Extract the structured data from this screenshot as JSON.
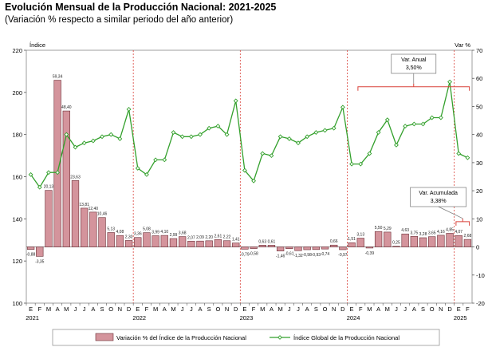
{
  "header": {
    "title": "Evolución Mensual de la Producción Nacional: 2021-2025",
    "subtitle": "(Variación % respecto a similar periodo del año anterior)"
  },
  "chart_data": {
    "type": "bar+line",
    "y_left": {
      "label": "Índice",
      "min": 100,
      "max": 220,
      "step": 20
    },
    "y_right": {
      "label": "Var %",
      "min": -20,
      "max": 70,
      "step": 10
    },
    "month_letters": [
      "E",
      "F",
      "M",
      "A",
      "M",
      "J",
      "J",
      "A",
      "S",
      "O",
      "N",
      "D",
      "E",
      "F",
      "M",
      "A",
      "M",
      "J",
      "J",
      "A",
      "S",
      "O",
      "N",
      "D",
      "E",
      "F",
      "M",
      "A",
      "M",
      "J",
      "J",
      "A",
      "S",
      "O",
      "N",
      "D",
      "E",
      "F",
      "M",
      "A",
      "M",
      "J",
      "J",
      "A",
      "S",
      "O",
      "N",
      "D",
      "E",
      "F"
    ],
    "year_labels": [
      {
        "index": 0,
        "label": "2021"
      },
      {
        "index": 12,
        "label": "2022"
      },
      {
        "index": 24,
        "label": "2023"
      },
      {
        "index": 36,
        "label": "2024"
      },
      {
        "index": 48,
        "label": "2025"
      }
    ],
    "year_separators": [
      12,
      24,
      36,
      48
    ],
    "bar_series": {
      "name": "Variación % del Índice de la Producción Nacional",
      "color": "#d4949c",
      "values": [
        -0.88,
        -3.35,
        20.13,
        59.34,
        48.4,
        23.63,
        13.81,
        12.4,
        10.46,
        5.13,
        4.08,
        2.3,
        3.36,
        5.08,
        3.99,
        4.1,
        2.99,
        3.68,
        2.07,
        2.09,
        2.2,
        2.61,
        2.22,
        1.41,
        -0.79,
        -0.58,
        0.63,
        0.61,
        -1.46,
        -0.61,
        -1.32,
        -0.98,
        -0.93,
        -0.74,
        0.66,
        -0.97,
        1.51,
        3.13,
        -0.39,
        5.5,
        5.29,
        0.25,
        4.63,
        3.75,
        3.28,
        3.65,
        4.16,
        4.85,
        4.07,
        2.68
      ],
      "labels": [
        "-0,88",
        "-3,35",
        "20,13",
        "59,34",
        "48,40",
        "23,63",
        "13,81",
        "12,40",
        "10,46",
        "5,13",
        "4,08",
        "2,30",
        "3,36",
        "5,08",
        "3,99",
        "4,10",
        "2,99",
        "3,68",
        "2,07",
        "2,09",
        "2,20",
        "2,61",
        "2,22",
        "1,41",
        "-0,79",
        "-0,58",
        "0,63",
        "0,61",
        "-1,46",
        "-0,61",
        "-1,32",
        "-0,98",
        "-0,93",
        "-0,74",
        "0,66",
        "-0,97",
        "1,51",
        "3,13",
        "-0,39",
        "5,50",
        "5,29",
        "0,25",
        "4,63",
        "3,75",
        "3,28",
        "3,65",
        "4,16",
        "4,85",
        "4,07",
        "2,68"
      ]
    },
    "line_series": {
      "name": "Índice Global de la Producción Nacional",
      "color": "#33a02c",
      "values": [
        161,
        155,
        162,
        162,
        180,
        174,
        176,
        177,
        179,
        180,
        178,
        192,
        164,
        161,
        168,
        168,
        181,
        179,
        179,
        180,
        183,
        184,
        180,
        196,
        163,
        158,
        171,
        170,
        179,
        178,
        176,
        179,
        181,
        182,
        183,
        193,
        166,
        166,
        171,
        181,
        187,
        175,
        184,
        185,
        185,
        188,
        188,
        205,
        171,
        169
      ]
    },
    "annotations": [
      {
        "label": "Var. Anual",
        "value": "3,50%",
        "bracket_from": 37,
        "bracket_to": 49
      },
      {
        "label": "Var. Acumulada",
        "value": "3,38%",
        "bracket_from": 48,
        "bracket_to": 49
      }
    ],
    "legend_position": "bottom"
  }
}
